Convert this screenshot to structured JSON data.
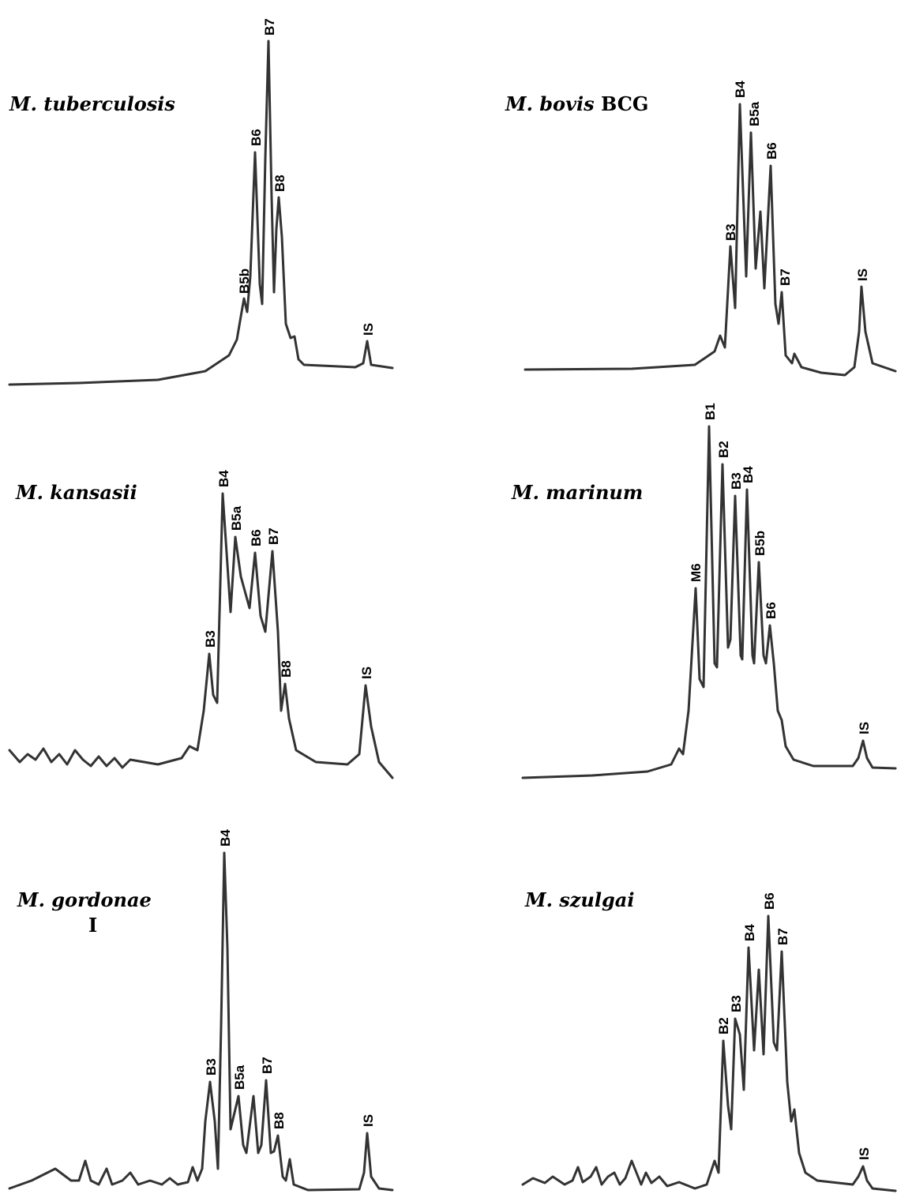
{
  "panels": [
    {
      "species": "M. tuberculosis",
      "peaks": [
        "B5b",
        "B6",
        "B7",
        "B8",
        "IS"
      ]
    },
    {
      "species": "M. bovis",
      "strain": "BCG",
      "peaks": [
        "B3",
        "B4",
        "B5a",
        "B6",
        "B7",
        "IS"
      ]
    },
    {
      "species": "M. kansasii",
      "peaks": [
        "B3",
        "B4",
        "B5a",
        "B6",
        "B7",
        "B8",
        "IS"
      ]
    },
    {
      "species": "M. marinum",
      "peaks": [
        "M6",
        "B1",
        "B2",
        "B3",
        "B4",
        "B5b",
        "B6",
        "IS"
      ]
    },
    {
      "species": "M. gordonae",
      "mark": "I",
      "peaks": [
        "B3",
        "B4",
        "B5a",
        "B7",
        "B8",
        "IS"
      ]
    },
    {
      "species": "M. szulgai",
      "peaks": [
        "B2",
        "B3",
        "B4",
        "B6",
        "B7",
        "IS"
      ]
    }
  ]
}
